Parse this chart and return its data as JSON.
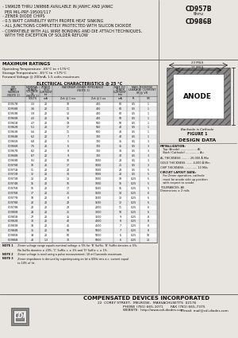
{
  "title_left_lines": [
    "- 1N962B THRU 1N986B AVAILABLE IN JANHC AND JANKC",
    "  PER MIL-PRF-19500/117",
    "- ZENER DIODE CHIPS",
    "- 0.5 WATT CAPABILITY WITH PROPER HEAT SINKING",
    "- ALL JUNCTIONS COMPLETELY PROTECTED WITH SILICON DIOXIDE",
    "- COMPATIBLE WITH ALL WIRE BONDING AND DIE ATTACH TECHNIQUES,",
    "  WITH THE EXCEPTION OF SOLDER REFLOW"
  ],
  "title_right_lines": [
    "CD957B",
    "thru",
    "CD986B"
  ],
  "max_ratings_title": "MAXIMUM RATINGS",
  "max_ratings_lines": [
    "Operating Temperature: -65°C to +175°C",
    "Storage Temperature: -65°C to +175°C",
    "Forward Voltage @ 200mA, 1.5 volts maximum"
  ],
  "elec_char_title": "ELECTRICAL CHARACTERISTICS @ 25 °C",
  "table_data": [
    [
      "CD957B",
      "3.3",
      "20",
      "10",
      "400",
      "60",
      "0.5",
      "1",
      "100PA"
    ],
    [
      "CD958B",
      "3.6",
      "20",
      "11",
      "400",
      "60",
      "0.5",
      "1",
      "100PA"
    ],
    [
      "CD959B",
      "3.9",
      "20",
      "13",
      "400",
      "60",
      "0.5",
      "1",
      "100PA"
    ],
    [
      "CD960B",
      "4.3",
      "20",
      "15",
      "400",
      "50",
      "0.5",
      "1",
      "100PA"
    ],
    [
      "CD961B",
      "4.7",
      "20",
      "19",
      "500",
      "50",
      "0.5",
      "1",
      "100PA"
    ],
    [
      "CD962B",
      "5.1",
      "20",
      "17",
      "550",
      "40",
      "0.5",
      "1",
      "100PA"
    ],
    [
      "CD963B",
      "5.6",
      "20",
      "11",
      "600",
      "40",
      "0.5",
      "1",
      "100PA"
    ],
    [
      "CD964B",
      "6.2",
      "20",
      "7",
      "700",
      "40",
      "0.5",
      "1",
      "100PA"
    ],
    [
      "CD965B",
      "6.8",
      "20",
      "5",
      "700",
      "35",
      "0.5",
      "3",
      "100PA"
    ],
    [
      "CD966B",
      "7.5",
      "20",
      "6",
      "700",
      "35",
      "0.5",
      "3",
      "100PA"
    ],
    [
      "CD967B",
      "8.2",
      "20",
      "8",
      "700",
      "30",
      "0.5",
      "3",
      "100PA"
    ],
    [
      "CD968B",
      "8.7",
      "20",
      "9",
      "700",
      "30",
      "0.5",
      "3",
      "100PA"
    ],
    [
      "CD969B",
      "9.1",
      "20",
      "10",
      "1000",
      "28",
      "0.5",
      "3",
      "100PA"
    ],
    [
      "CD970B",
      "10",
      "20",
      "17",
      "1000",
      "25",
      "0.5",
      "3",
      "100PA"
    ],
    [
      "CD971B",
      "11",
      "20",
      "22",
      "1000",
      "22",
      "0.5",
      "5",
      "100PA"
    ],
    [
      "CD972B",
      "12",
      "20",
      "30",
      "1000",
      "20",
      "0.5",
      "5",
      "100PA"
    ],
    [
      "CD973B",
      "13",
      "20",
      "13",
      "1000",
      "18",
      "0.25",
      "5",
      "100PA"
    ],
    [
      "CD974B",
      "15",
      "20",
      "16",
      "1000",
      "16",
      "0.25",
      "5",
      "100PA"
    ],
    [
      "CD975B",
      "16",
      "20",
      "17",
      "1500",
      "15",
      "0.25",
      "5",
      "100PA"
    ],
    [
      "CD976B",
      "17",
      "20",
      "25",
      "1500",
      "14",
      "0.25",
      "6",
      "50PA"
    ],
    [
      "CD977B",
      "18",
      "20",
      "8",
      "1500",
      "13",
      "0.25",
      "6",
      "50PA"
    ],
    [
      "CD978B",
      "20",
      "20",
      "22",
      "1500",
      "12",
      "0.25",
      "6",
      "50PA"
    ],
    [
      "CD979B",
      "22",
      "20",
      "23",
      "2000",
      "11",
      "0.25",
      "6",
      "50PA"
    ],
    [
      "CD980B",
      "24",
      "20",
      "25",
      "3000",
      "10",
      "0.25",
      "6",
      "50PA"
    ],
    [
      "CD981B",
      "27",
      "20",
      "35",
      "3500",
      "9",
      "0.25",
      "8",
      "50PA"
    ],
    [
      "CD982B",
      "30",
      "20",
      "40",
      "4000",
      "8",
      "0.25",
      "8",
      "50PA"
    ],
    [
      "CD983B",
      "33",
      "20",
      "45",
      "4500",
      "7",
      "0.25",
      "8",
      "50PA"
    ],
    [
      "CD984B",
      "36",
      "20",
      "50",
      "5000",
      "7",
      "0.25",
      "8",
      "50PA"
    ],
    [
      "CD985B",
      "39",
      "20",
      "60",
      "5000",
      "6",
      "0.25",
      "10",
      "25PA"
    ],
    [
      "CD986B",
      "43",
      "1.3",
      "70",
      "5000",
      "6",
      "0.25",
      "13",
      "25PA"
    ]
  ],
  "notes": [
    [
      "NOTE 1",
      "  Zener voltage range equals nominal voltage ± 5% for 'B' Suffix. 'B' Suffix denotes ± 5%,"
    ],
    [
      "",
      "  No Suffix denotes ± 20%, 'C' Suffix = ± 2% and 'D' Suffix = ± 1%."
    ],
    [
      "NOTE 2",
      "  Zener voltage is read using a pulse measurement; 10 milliseconds maximum."
    ],
    [
      "NOTE 3",
      "  Zener impedance is derived by superimposing on Izt a 60Hz rms a.c. current equal"
    ],
    [
      "",
      "  to 10% of Izt."
    ]
  ],
  "design_data_title": "DESIGN DATA",
  "design_data": [
    [
      "bold",
      "METALLIZATION:"
    ],
    [
      "normal",
      "   Top (Anode) .................. Al"
    ],
    [
      "normal",
      "   Back (Cathode) ............... Au"
    ],
    [
      "normal",
      ""
    ],
    [
      "normal",
      "AL THICKNESS ......... 20,000 Å Min"
    ],
    [
      "normal",
      ""
    ],
    [
      "normal",
      "GOLD THICKNESS ....... 4,000 Å Min"
    ],
    [
      "normal",
      ""
    ],
    [
      "normal",
      "CHIP THICKNESS .............. 10 Mils"
    ],
    [
      "normal",
      ""
    ],
    [
      "bold",
      "CIRCUIT LAYOUT DATA:"
    ],
    [
      "normal",
      "   For Zener operation, cathode"
    ],
    [
      "normal",
      "   must be anode side up position"
    ],
    [
      "normal",
      "   with respect to anode."
    ],
    [
      "normal",
      ""
    ],
    [
      "normal",
      "TOLERANCES: All"
    ],
    [
      "normal",
      "Dimensions ± 2 mils"
    ]
  ],
  "figure_label": "FIGURE 1",
  "anode_label": "ANODE",
  "backside_label": "Backside is Cathode",
  "dim_outer": "23 MILS",
  "dim_inner": "11 MILS",
  "company_name": "COMPENSATED DEVICES INCORPORATED",
  "company_address": "22  COREY STREET,  MELROSE,  MASSACHUSETTS  02176",
  "company_phone_left": "PHONE (781) 665-1071",
  "company_phone_right": "FAX (781) 665-7375",
  "company_web_left": "WEBSITE:  http://www.cdi-diodes.com",
  "company_web_right": "E-mail: mail@cdi-diodes.com",
  "bg_color": "#e8e5e0",
  "white": "#ffffff",
  "gray_light": "#cccccc",
  "gray_mid": "#999999",
  "gray_dark": "#555555",
  "black": "#111111"
}
